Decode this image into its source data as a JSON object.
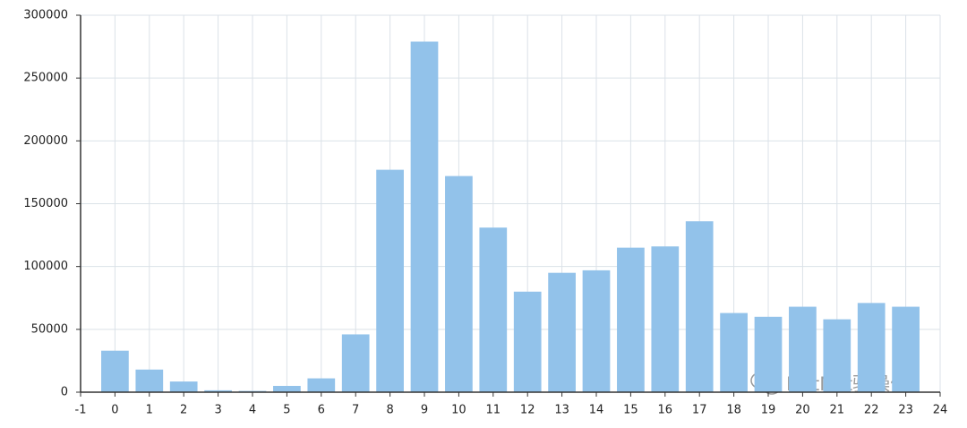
{
  "chart_data": {
    "type": "bar",
    "x": [
      0,
      1,
      2,
      3,
      4,
      5,
      6,
      7,
      8,
      9,
      10,
      11,
      12,
      13,
      14,
      15,
      16,
      17,
      18,
      19,
      20,
      21,
      22,
      23
    ],
    "values": [
      33000,
      18000,
      8500,
      1500,
      1000,
      5000,
      11000,
      46000,
      177000,
      279000,
      172000,
      131000,
      80000,
      95000,
      97000,
      115000,
      116000,
      136000,
      63000,
      60000,
      68000,
      58000,
      71000,
      68000
    ],
    "color": "#92c2ea",
    "xlim": [
      -1,
      24
    ],
    "xticks": [
      -1,
      0,
      1,
      2,
      3,
      4,
      5,
      6,
      7,
      8,
      9,
      10,
      11,
      12,
      13,
      14,
      15,
      16,
      17,
      18,
      19,
      20,
      21,
      22,
      23,
      24
    ],
    "ylim": [
      0,
      300000
    ],
    "yticks": [
      0,
      50000,
      100000,
      150000,
      200000,
      250000,
      300000
    ],
    "grid": true,
    "watermark": "DotNet骚操作"
  }
}
